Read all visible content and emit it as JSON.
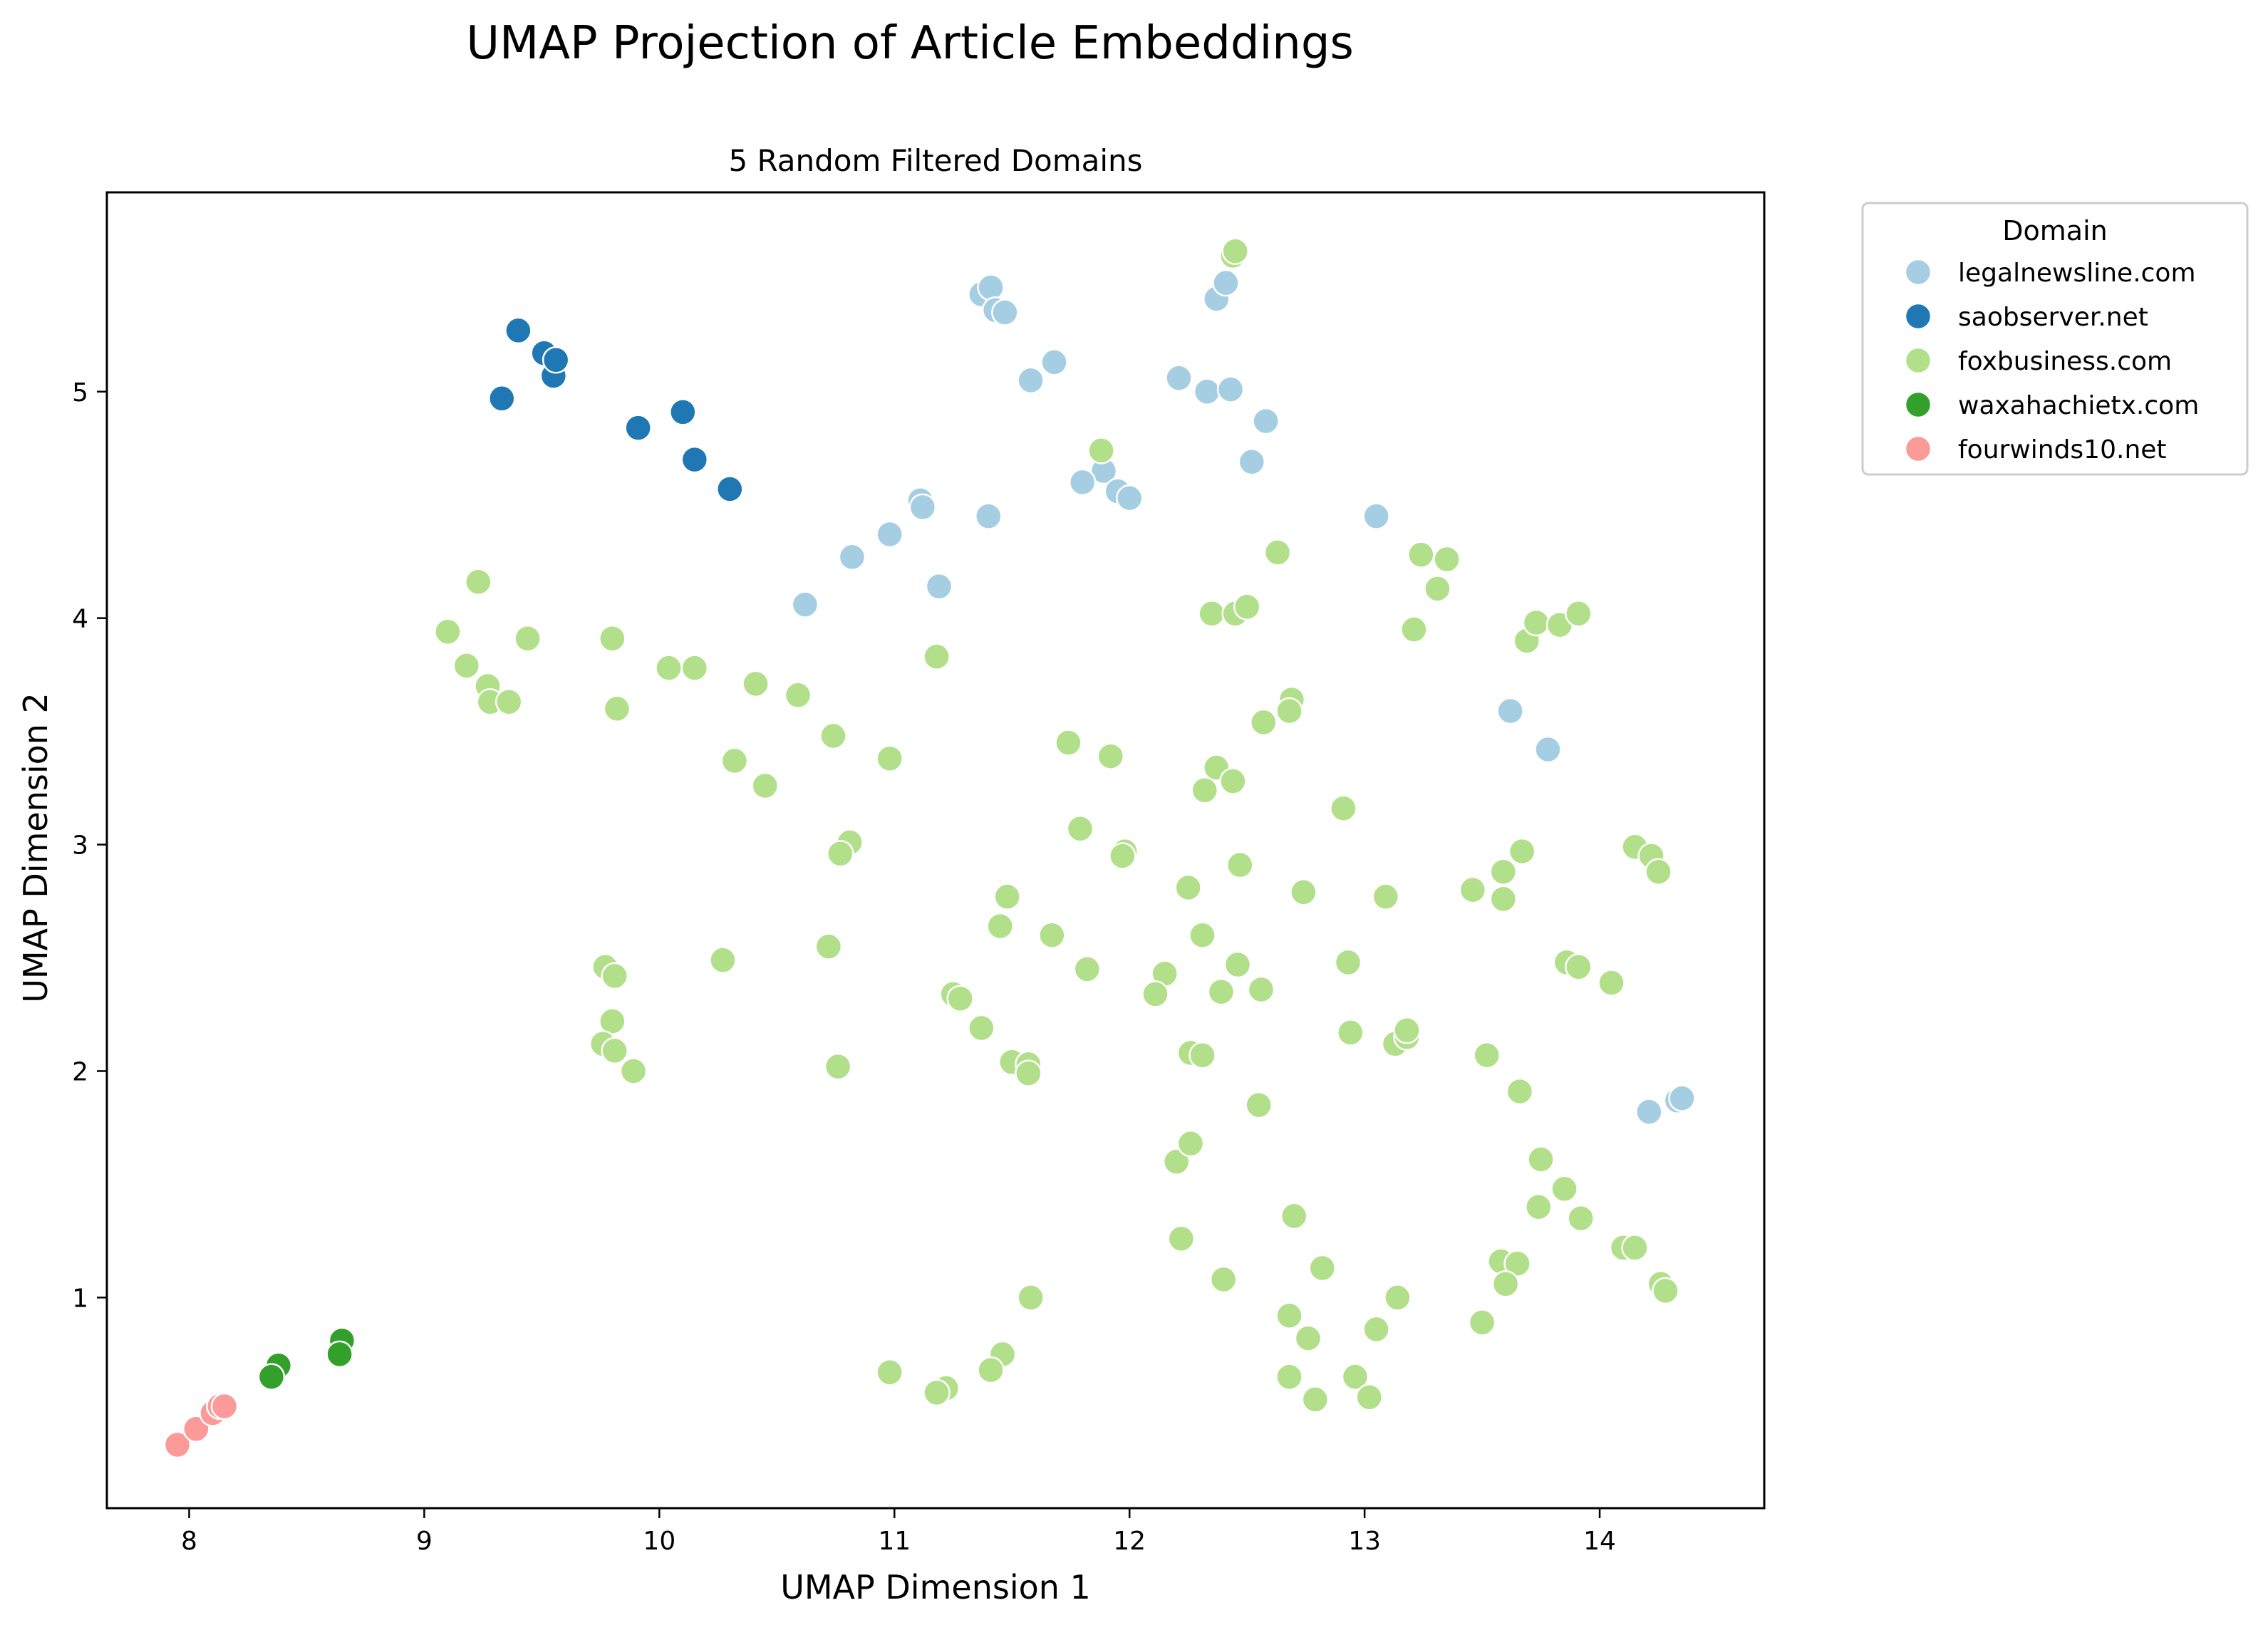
{
  "figure": {
    "suptitle": "UMAP Projection of Article Embeddings"
  },
  "chart_data": {
    "type": "scatter",
    "title": "5 Random Filtered Domains",
    "xlabel": "UMAP Dimension 1",
    "ylabel": "UMAP Dimension 2",
    "xlim": [
      7.65,
      14.7
    ],
    "ylim": [
      0.07,
      5.88
    ],
    "xticks": [
      8,
      9,
      10,
      11,
      12,
      13,
      14
    ],
    "yticks": [
      1,
      2,
      3,
      4,
      5
    ],
    "grid": false,
    "legend": {
      "title": "Domain",
      "placement": "outside-top-right"
    },
    "series": [
      {
        "name": "legalnewsline.com",
        "color": "#a6cee3",
        "points": [
          [
            11.37,
            5.43
          ],
          [
            11.41,
            5.46
          ],
          [
            11.43,
            5.36
          ],
          [
            11.47,
            5.35
          ],
          [
            12.37,
            5.41
          ],
          [
            12.41,
            5.48
          ],
          [
            11.68,
            5.13
          ],
          [
            11.58,
            5.05
          ],
          [
            12.21,
            5.06
          ],
          [
            12.33,
            5.0
          ],
          [
            12.43,
            5.01
          ],
          [
            12.58,
            4.87
          ],
          [
            12.52,
            4.69
          ],
          [
            11.89,
            4.65
          ],
          [
            11.8,
            4.6
          ],
          [
            11.95,
            4.56
          ],
          [
            12.0,
            4.53
          ],
          [
            11.11,
            4.52
          ],
          [
            11.12,
            4.49
          ],
          [
            11.4,
            4.45
          ],
          [
            10.98,
            4.37
          ],
          [
            10.82,
            4.27
          ],
          [
            11.19,
            4.14
          ],
          [
            10.62,
            4.06
          ],
          [
            13.05,
            4.45
          ],
          [
            13.62,
            3.59
          ],
          [
            13.78,
            3.42
          ],
          [
            14.33,
            1.87
          ],
          [
            14.35,
            1.88
          ],
          [
            14.21,
            1.82
          ]
        ]
      },
      {
        "name": "saobserver.net",
        "color": "#1f78b4",
        "points": [
          [
            9.4,
            5.27
          ],
          [
            9.51,
            5.17
          ],
          [
            9.55,
            5.07
          ],
          [
            9.56,
            5.14
          ],
          [
            9.33,
            4.97
          ],
          [
            9.91,
            4.84
          ],
          [
            10.1,
            4.91
          ],
          [
            10.15,
            4.7
          ],
          [
            10.3,
            4.57
          ]
        ]
      },
      {
        "name": "foxbusiness.com",
        "color": "#b2df8a",
        "points": [
          [
            12.44,
            5.6
          ],
          [
            12.45,
            5.62
          ],
          [
            9.23,
            4.16
          ],
          [
            9.1,
            3.94
          ],
          [
            9.44,
            3.91
          ],
          [
            9.8,
            3.91
          ],
          [
            9.18,
            3.79
          ],
          [
            9.27,
            3.7
          ],
          [
            9.28,
            3.63
          ],
          [
            9.36,
            3.63
          ],
          [
            9.82,
            3.6
          ],
          [
            10.04,
            3.78
          ],
          [
            10.15,
            3.78
          ],
          [
            10.41,
            3.71
          ],
          [
            10.59,
            3.66
          ],
          [
            10.74,
            3.48
          ],
          [
            11.18,
            3.83
          ],
          [
            10.32,
            3.37
          ],
          [
            10.45,
            3.26
          ],
          [
            10.98,
            3.38
          ],
          [
            10.81,
            3.01
          ],
          [
            10.77,
            2.96
          ],
          [
            11.74,
            3.45
          ],
          [
            11.92,
            3.39
          ],
          [
            11.79,
            3.07
          ],
          [
            11.98,
            2.97
          ],
          [
            11.97,
            2.95
          ],
          [
            11.88,
            4.74
          ],
          [
            12.63,
            4.29
          ],
          [
            13.24,
            4.28
          ],
          [
            13.35,
            4.26
          ],
          [
            13.31,
            4.13
          ],
          [
            13.21,
            3.95
          ],
          [
            12.35,
            4.02
          ],
          [
            12.45,
            4.02
          ],
          [
            12.5,
            4.05
          ],
          [
            12.69,
            3.64
          ],
          [
            12.68,
            3.59
          ],
          [
            12.57,
            3.54
          ],
          [
            12.37,
            3.34
          ],
          [
            12.32,
            3.24
          ],
          [
            12.44,
            3.28
          ],
          [
            12.91,
            3.16
          ],
          [
            12.47,
            2.91
          ],
          [
            12.25,
            2.81
          ],
          [
            12.74,
            2.79
          ],
          [
            13.09,
            2.77
          ],
          [
            13.46,
            2.8
          ],
          [
            13.59,
            2.88
          ],
          [
            13.59,
            2.76
          ],
          [
            13.67,
            2.97
          ],
          [
            14.15,
            2.99
          ],
          [
            14.22,
            2.95
          ],
          [
            14.25,
            2.88
          ],
          [
            13.69,
            3.9
          ],
          [
            13.73,
            3.98
          ],
          [
            13.83,
            3.97
          ],
          [
            13.91,
            4.02
          ],
          [
            11.48,
            2.77
          ],
          [
            11.45,
            2.64
          ],
          [
            11.67,
            2.6
          ],
          [
            10.72,
            2.55
          ],
          [
            10.27,
            2.49
          ],
          [
            9.77,
            2.46
          ],
          [
            9.81,
            2.42
          ],
          [
            9.8,
            2.22
          ],
          [
            9.76,
            2.12
          ],
          [
            9.81,
            2.09
          ],
          [
            9.89,
            2.0
          ],
          [
            10.76,
            2.02
          ],
          [
            11.25,
            2.34
          ],
          [
            11.28,
            2.32
          ],
          [
            11.37,
            2.19
          ],
          [
            11.5,
            2.04
          ],
          [
            11.57,
            2.03
          ],
          [
            11.57,
            1.99
          ],
          [
            11.82,
            2.45
          ],
          [
            12.15,
            2.43
          ],
          [
            12.11,
            2.34
          ],
          [
            12.31,
            2.6
          ],
          [
            12.46,
            2.47
          ],
          [
            12.39,
            2.35
          ],
          [
            12.56,
            2.36
          ],
          [
            12.93,
            2.48
          ],
          [
            12.94,
            2.17
          ],
          [
            12.26,
            2.08
          ],
          [
            12.31,
            2.07
          ],
          [
            13.13,
            2.12
          ],
          [
            13.18,
            2.15
          ],
          [
            13.18,
            2.18
          ],
          [
            13.52,
            2.07
          ],
          [
            13.66,
            1.91
          ],
          [
            13.86,
            2.48
          ],
          [
            13.91,
            2.46
          ],
          [
            14.05,
            2.39
          ],
          [
            12.55,
            1.85
          ],
          [
            12.2,
            1.6
          ],
          [
            12.26,
            1.68
          ],
          [
            13.75,
            1.61
          ],
          [
            13.85,
            1.48
          ],
          [
            13.74,
            1.4
          ],
          [
            13.92,
            1.35
          ],
          [
            12.7,
            1.36
          ],
          [
            12.22,
            1.26
          ],
          [
            12.82,
            1.13
          ],
          [
            12.4,
            1.08
          ],
          [
            13.58,
            1.16
          ],
          [
            13.65,
            1.15
          ],
          [
            13.6,
            1.06
          ],
          [
            14.1,
            1.22
          ],
          [
            14.15,
            1.22
          ],
          [
            14.26,
            1.06
          ],
          [
            14.28,
            1.03
          ],
          [
            11.58,
            1.0
          ],
          [
            11.46,
            0.75
          ],
          [
            11.41,
            0.68
          ],
          [
            10.98,
            0.67
          ],
          [
            11.22,
            0.6
          ],
          [
            11.18,
            0.58
          ],
          [
            12.68,
            0.92
          ],
          [
            12.76,
            0.82
          ],
          [
            13.14,
            1.0
          ],
          [
            13.05,
            0.86
          ],
          [
            13.5,
            0.89
          ],
          [
            12.68,
            0.65
          ],
          [
            12.79,
            0.55
          ],
          [
            12.96,
            0.65
          ],
          [
            13.02,
            0.56
          ]
        ]
      },
      {
        "name": "waxahachietx.com",
        "color": "#33a02c",
        "points": [
          [
            8.65,
            0.81
          ],
          [
            8.64,
            0.75
          ],
          [
            8.38,
            0.7
          ],
          [
            8.35,
            0.65
          ]
        ]
      },
      {
        "name": "fourwinds10.net",
        "color": "#fb9a99",
        "points": [
          [
            7.95,
            0.35
          ],
          [
            8.03,
            0.42
          ],
          [
            8.1,
            0.49
          ],
          [
            8.13,
            0.52
          ],
          [
            8.15,
            0.52
          ]
        ]
      }
    ]
  }
}
